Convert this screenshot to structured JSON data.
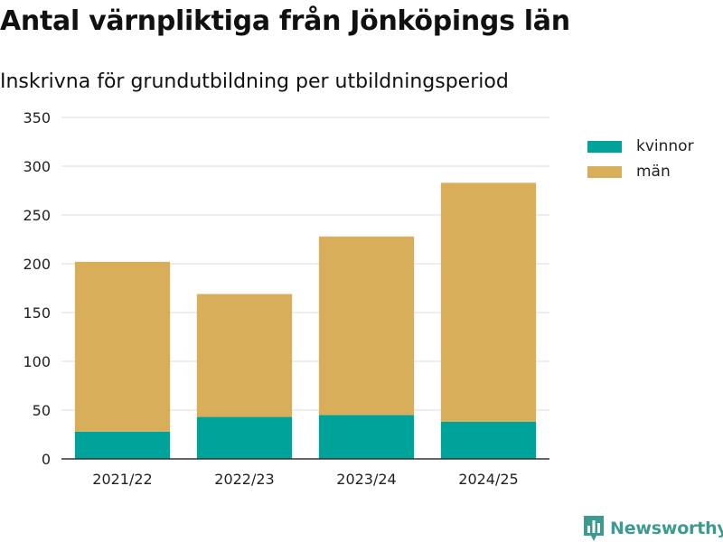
{
  "header": {
    "title": "Antal värnpliktiga från Jönköpings län",
    "subtitle": "Inskrivna för grundutbildning per utbildningsperiod"
  },
  "legend": {
    "items": [
      {
        "label": "kvinnor",
        "color": "#00a39a"
      },
      {
        "label": "män",
        "color": "#d9ae5b"
      }
    ]
  },
  "branding": {
    "logo_text": "Newsworthy",
    "icon": "newsworthy-bar-chart-icon"
  },
  "chart_data": {
    "type": "bar",
    "stacked": true,
    "categories": [
      "2021/22",
      "2022/23",
      "2023/24",
      "2024/25"
    ],
    "series": [
      {
        "name": "kvinnor",
        "values": [
          28,
          43,
          45,
          38
        ],
        "color": "#00a39a"
      },
      {
        "name": "män",
        "values": [
          174,
          126,
          183,
          245
        ],
        "color": "#d9ae5b"
      }
    ],
    "title": "Antal värnpliktiga från Jönköpings län",
    "subtitle": "Inskrivna för grundutbildning per utbildningsperiod",
    "xlabel": "",
    "ylabel": "",
    "ylim": [
      0,
      350
    ],
    "yticks": [
      0,
      50,
      100,
      150,
      200,
      250,
      300,
      350
    ],
    "grid": true,
    "legend_position": "right"
  }
}
